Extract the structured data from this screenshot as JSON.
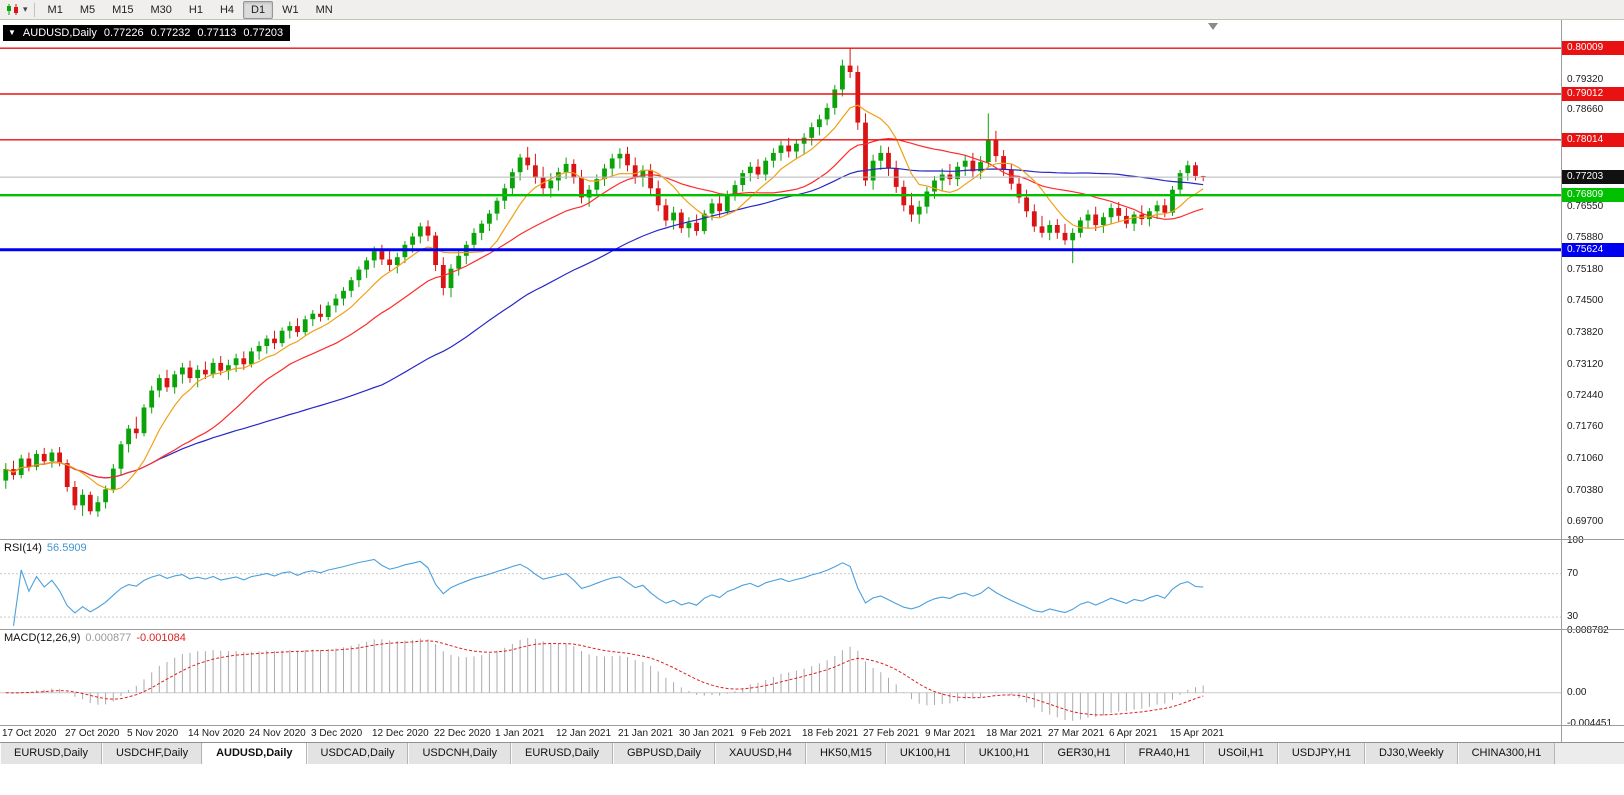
{
  "toolbar": {
    "timeframes": [
      {
        "label": "M1",
        "active": false
      },
      {
        "label": "M5",
        "active": false
      },
      {
        "label": "M15",
        "active": false
      },
      {
        "label": "M30",
        "active": false
      },
      {
        "label": "H1",
        "active": false
      },
      {
        "label": "H4",
        "active": false
      },
      {
        "label": "D1",
        "active": true
      },
      {
        "label": "W1",
        "active": false
      },
      {
        "label": "MN",
        "active": false
      }
    ]
  },
  "infobar": {
    "collapse_icon": "▼",
    "symbol": "AUDUSD,Daily",
    "open": "0.77226",
    "high": "0.77232",
    "low": "0.77113",
    "close": "0.77203"
  },
  "price_axis": {
    "ticks": [
      "0.79320",
      "0.78660",
      "0.76550",
      "0.75880",
      "0.75180",
      "0.74500",
      "0.73820",
      "0.73120",
      "0.72440",
      "0.71760",
      "0.71060",
      "0.70380",
      "0.69700"
    ],
    "badges": [
      {
        "value": "0.80009",
        "color": "#e81212",
        "name": "resistance-1"
      },
      {
        "value": "0.79012",
        "color": "#e81212",
        "name": "resistance-2"
      },
      {
        "value": "0.78014",
        "color": "#e81212",
        "name": "resistance-3"
      },
      {
        "value": "0.77203",
        "color": "#111111",
        "name": "current-price"
      },
      {
        "value": "0.76809",
        "color": "#00c000",
        "name": "support-green"
      },
      {
        "value": "0.75624",
        "color": "#0000f0",
        "name": "support-blue"
      }
    ]
  },
  "rsi": {
    "label": "RSI(14)",
    "value": "56.5909",
    "color": "#4aa0dc",
    "axis": [
      "100",
      "70",
      "30"
    ],
    "levels": [
      70,
      30
    ],
    "domain": [
      20,
      100
    ]
  },
  "macd": {
    "label": "MACD(12,26,9)",
    "main_value": "0.000877",
    "signal_value": "-0.001084",
    "axis_top": "0.008782",
    "axis_zero": "0.00",
    "axis_bottom": "-0.004451",
    "domain": [
      -0.004451,
      0.008782
    ],
    "histogram_color": "#ababab",
    "signal_color": "#e02020"
  },
  "tabs": [
    "EURUSD,Daily",
    "USDCHF,Daily",
    "AUDUSD,Daily",
    "USDCAD,Daily",
    "USDCNH,Daily",
    "EURUSD,Daily",
    "GBPUSD,Daily",
    "XAUUSD,H4",
    "HK50,M15",
    "UK100,H1",
    "UK100,H1",
    "GER30,H1",
    "FRA40,H1",
    "USOil,H1",
    "USDJPY,H1",
    "DJ30,Weekly",
    "CHINA300,H1"
  ],
  "active_tab": 2,
  "chart_data": {
    "type": "candlestick",
    "symbol": "AUDUSD",
    "timeframe": "Daily",
    "price_domain": [
      0.6935,
      0.806
    ],
    "colors": {
      "bull": "#0aa30a",
      "bear": "#d91414"
    },
    "moving_averages": [
      {
        "name": "ma-slow-blue",
        "period": 50,
        "color": "#2828c8"
      },
      {
        "name": "ma-mid-red",
        "period": 20,
        "color": "#ff2b2b"
      },
      {
        "name": "ma-fast-orange",
        "period": 8,
        "color": "#f0a018"
      }
    ],
    "hlines": [
      {
        "name": "hline-resistance-080009",
        "price": 0.80009,
        "color": "#e81212",
        "width": 1.4
      },
      {
        "name": "hline-resistance-079012",
        "price": 0.79012,
        "color": "#e81212",
        "width": 1.4
      },
      {
        "name": "hline-resistance-078014",
        "price": 0.78014,
        "color": "#e81212",
        "width": 1.4
      },
      {
        "name": "hline-current-077203",
        "price": 0.77203,
        "color": "#b8b8b8",
        "width": 1
      },
      {
        "name": "hline-support-076809",
        "price": 0.76809,
        "color": "#00c000",
        "width": 2.4
      },
      {
        "name": "hline-support-075624",
        "price": 0.75624,
        "color": "#0000f0",
        "width": 3
      }
    ],
    "candles": [
      [
        0.706,
        0.7098,
        0.7042,
        0.7085
      ],
      [
        0.7085,
        0.7103,
        0.7062,
        0.7072
      ],
      [
        0.7072,
        0.7116,
        0.7065,
        0.7108
      ],
      [
        0.7108,
        0.7121,
        0.708,
        0.709
      ],
      [
        0.709,
        0.7126,
        0.7082,
        0.7118
      ],
      [
        0.7118,
        0.7131,
        0.7094,
        0.7102
      ],
      [
        0.7102,
        0.7129,
        0.7088,
        0.7121
      ],
      [
        0.7121,
        0.7133,
        0.7091,
        0.7098
      ],
      [
        0.7098,
        0.7106,
        0.7036,
        0.7046
      ],
      [
        0.7046,
        0.7059,
        0.6996,
        0.7006
      ],
      [
        0.7006,
        0.7041,
        0.6983,
        0.7029
      ],
      [
        0.7029,
        0.7036,
        0.6986,
        0.6993
      ],
      [
        0.6993,
        0.7026,
        0.6981,
        0.7013
      ],
      [
        0.7013,
        0.7049,
        0.6999,
        0.7041
      ],
      [
        0.7041,
        0.7096,
        0.7033,
        0.7086
      ],
      [
        0.7086,
        0.7146,
        0.7071,
        0.7139
      ],
      [
        0.7139,
        0.7181,
        0.7121,
        0.7173
      ],
      [
        0.7173,
        0.7199,
        0.7151,
        0.7163
      ],
      [
        0.7163,
        0.7226,
        0.7156,
        0.7219
      ],
      [
        0.7219,
        0.7266,
        0.7206,
        0.7256
      ],
      [
        0.7256,
        0.7291,
        0.7241,
        0.7283
      ],
      [
        0.7283,
        0.7301,
        0.7253,
        0.7263
      ],
      [
        0.7263,
        0.7299,
        0.7249,
        0.7291
      ],
      [
        0.7291,
        0.7316,
        0.7271,
        0.7306
      ],
      [
        0.7306,
        0.7321,
        0.7273,
        0.7283
      ],
      [
        0.7283,
        0.7311,
        0.7263,
        0.7301
      ],
      [
        0.7301,
        0.7319,
        0.7281,
        0.7291
      ],
      [
        0.7291,
        0.7326,
        0.7283,
        0.7316
      ],
      [
        0.7316,
        0.7331,
        0.7289,
        0.7299
      ],
      [
        0.7299,
        0.7323,
        0.7279,
        0.7311
      ],
      [
        0.7311,
        0.7336,
        0.7296,
        0.7326
      ],
      [
        0.7326,
        0.7341,
        0.7301,
        0.7313
      ],
      [
        0.7313,
        0.7349,
        0.7306,
        0.7341
      ],
      [
        0.7341,
        0.7363,
        0.7323,
        0.7353
      ],
      [
        0.7353,
        0.7376,
        0.7336,
        0.7369
      ],
      [
        0.7369,
        0.7386,
        0.7346,
        0.7359
      ],
      [
        0.7359,
        0.7393,
        0.7351,
        0.7386
      ],
      [
        0.7386,
        0.7406,
        0.7369,
        0.7396
      ],
      [
        0.7396,
        0.7413,
        0.7373,
        0.7383
      ],
      [
        0.7383,
        0.7419,
        0.7376,
        0.7411
      ],
      [
        0.7411,
        0.7431,
        0.7396,
        0.7423
      ],
      [
        0.7423,
        0.7443,
        0.7406,
        0.7416
      ],
      [
        0.7416,
        0.7449,
        0.7409,
        0.7441
      ],
      [
        0.7441,
        0.7466,
        0.7426,
        0.7456
      ],
      [
        0.7456,
        0.7481,
        0.7441,
        0.7473
      ],
      [
        0.7473,
        0.7503,
        0.7459,
        0.7496
      ],
      [
        0.7496,
        0.7526,
        0.7481,
        0.7519
      ],
      [
        0.7519,
        0.7546,
        0.7501,
        0.7539
      ],
      [
        0.7539,
        0.7569,
        0.7523,
        0.7559
      ],
      [
        0.7559,
        0.7573,
        0.7529,
        0.7541
      ],
      [
        0.7541,
        0.7563,
        0.7516,
        0.7529
      ],
      [
        0.7529,
        0.7556,
        0.7511,
        0.7546
      ],
      [
        0.7546,
        0.7581,
        0.7533,
        0.7573
      ],
      [
        0.7573,
        0.7599,
        0.7556,
        0.7591
      ],
      [
        0.7591,
        0.7621,
        0.7576,
        0.7613
      ],
      [
        0.7613,
        0.7626,
        0.7581,
        0.7593
      ],
      [
        0.7593,
        0.7601,
        0.7516,
        0.7529
      ],
      [
        0.7529,
        0.7546,
        0.7463,
        0.7479
      ],
      [
        0.7479,
        0.7531,
        0.7459,
        0.7521
      ],
      [
        0.7521,
        0.7559,
        0.7506,
        0.7549
      ],
      [
        0.7549,
        0.7581,
        0.7531,
        0.7573
      ],
      [
        0.7573,
        0.7609,
        0.7561,
        0.7599
      ],
      [
        0.7599,
        0.7626,
        0.7583,
        0.7619
      ],
      [
        0.7619,
        0.7649,
        0.7603,
        0.7641
      ],
      [
        0.7641,
        0.7676,
        0.7626,
        0.7669
      ],
      [
        0.7669,
        0.7706,
        0.7651,
        0.7696
      ],
      [
        0.7696,
        0.7739,
        0.7683,
        0.7731
      ],
      [
        0.7731,
        0.7771,
        0.7713,
        0.7763
      ],
      [
        0.7763,
        0.7786,
        0.7736,
        0.7746
      ],
      [
        0.7746,
        0.7771,
        0.7706,
        0.7719
      ],
      [
        0.7719,
        0.7743,
        0.7683,
        0.7696
      ],
      [
        0.7696,
        0.7729,
        0.7676,
        0.7713
      ],
      [
        0.7713,
        0.7741,
        0.7691,
        0.7731
      ],
      [
        0.7731,
        0.7763,
        0.7716,
        0.7749
      ],
      [
        0.7749,
        0.7759,
        0.7706,
        0.7719
      ],
      [
        0.7719,
        0.7736,
        0.7663,
        0.7676
      ],
      [
        0.7676,
        0.7703,
        0.7656,
        0.7693
      ],
      [
        0.7693,
        0.7726,
        0.7679,
        0.7716
      ],
      [
        0.7716,
        0.7749,
        0.7701,
        0.7739
      ],
      [
        0.7739,
        0.7771,
        0.7723,
        0.7761
      ],
      [
        0.7761,
        0.7783,
        0.7739,
        0.7771
      ],
      [
        0.7771,
        0.7786,
        0.7733,
        0.7746
      ],
      [
        0.7746,
        0.7763,
        0.7706,
        0.7719
      ],
      [
        0.7719,
        0.7746,
        0.7699,
        0.7736
      ],
      [
        0.7736,
        0.7749,
        0.7683,
        0.7696
      ],
      [
        0.7696,
        0.7713,
        0.7646,
        0.7659
      ],
      [
        0.7659,
        0.7673,
        0.7613,
        0.7626
      ],
      [
        0.7626,
        0.7656,
        0.7606,
        0.7643
      ],
      [
        0.7643,
        0.7651,
        0.7599,
        0.7609
      ],
      [
        0.7609,
        0.7633,
        0.7589,
        0.7621
      ],
      [
        0.7621,
        0.7639,
        0.7593,
        0.7603
      ],
      [
        0.7603,
        0.7649,
        0.7596,
        0.7641
      ],
      [
        0.7641,
        0.7673,
        0.7626,
        0.7663
      ],
      [
        0.7663,
        0.7679,
        0.7633,
        0.7646
      ],
      [
        0.7646,
        0.7691,
        0.7639,
        0.7683
      ],
      [
        0.7683,
        0.7713,
        0.7669,
        0.7703
      ],
      [
        0.7703,
        0.7736,
        0.7689,
        0.7729
      ],
      [
        0.7729,
        0.7753,
        0.7711,
        0.7743
      ],
      [
        0.7743,
        0.7759,
        0.7716,
        0.7726
      ],
      [
        0.7726,
        0.7763,
        0.7713,
        0.7756
      ],
      [
        0.7756,
        0.7783,
        0.7741,
        0.7773
      ],
      [
        0.7773,
        0.7799,
        0.7756,
        0.7789
      ],
      [
        0.7789,
        0.7806,
        0.7763,
        0.7776
      ],
      [
        0.7776,
        0.7803,
        0.7759,
        0.7793
      ],
      [
        0.7793,
        0.7816,
        0.7771,
        0.7806
      ],
      [
        0.7806,
        0.7839,
        0.7789,
        0.7829
      ],
      [
        0.7829,
        0.7856,
        0.7811,
        0.7846
      ],
      [
        0.7846,
        0.7881,
        0.7833,
        0.7871
      ],
      [
        0.7871,
        0.7921,
        0.7856,
        0.7911
      ],
      [
        0.7911,
        0.7976,
        0.7896,
        0.7963
      ],
      [
        0.7963,
        0.8001,
        0.7936,
        0.7949
      ],
      [
        0.7949,
        0.7963,
        0.7823,
        0.7839
      ],
      [
        0.7839,
        0.7859,
        0.7701,
        0.7713
      ],
      [
        0.7713,
        0.7769,
        0.7693,
        0.7756
      ],
      [
        0.7756,
        0.7789,
        0.7736,
        0.7773
      ],
      [
        0.7773,
        0.7786,
        0.7723,
        0.7739
      ],
      [
        0.7739,
        0.7756,
        0.7686,
        0.7699
      ],
      [
        0.7699,
        0.7713,
        0.7646,
        0.7659
      ],
      [
        0.7659,
        0.7686,
        0.7623,
        0.7639
      ],
      [
        0.7639,
        0.7669,
        0.7619,
        0.7656
      ],
      [
        0.7656,
        0.7699,
        0.7641,
        0.7689
      ],
      [
        0.7689,
        0.7723,
        0.7673,
        0.7713
      ],
      [
        0.7713,
        0.7739,
        0.7691,
        0.7726
      ],
      [
        0.7726,
        0.7749,
        0.7703,
        0.7716
      ],
      [
        0.7716,
        0.7753,
        0.7701,
        0.7743
      ],
      [
        0.7743,
        0.7769,
        0.7723,
        0.7756
      ],
      [
        0.7756,
        0.7773,
        0.7719,
        0.7733
      ],
      [
        0.7733,
        0.7766,
        0.7716,
        0.7753
      ],
      [
        0.7753,
        0.7859,
        0.7741,
        0.7801
      ],
      [
        0.7801,
        0.7821,
        0.7753,
        0.7766
      ],
      [
        0.7766,
        0.7779,
        0.7723,
        0.7736
      ],
      [
        0.7736,
        0.7749,
        0.7693,
        0.7706
      ],
      [
        0.7706,
        0.7719,
        0.7663,
        0.7676
      ],
      [
        0.7676,
        0.7693,
        0.7633,
        0.7646
      ],
      [
        0.7646,
        0.7661,
        0.7601,
        0.7613
      ],
      [
        0.7613,
        0.7636,
        0.7589,
        0.7599
      ],
      [
        0.7599,
        0.7626,
        0.7583,
        0.7616
      ],
      [
        0.7616,
        0.7629,
        0.7586,
        0.7599
      ],
      [
        0.7599,
        0.7619,
        0.7573,
        0.7583
      ],
      [
        0.7583,
        0.7609,
        0.7533,
        0.7599
      ],
      [
        0.7599,
        0.7633,
        0.7589,
        0.7626
      ],
      [
        0.7626,
        0.7649,
        0.7609,
        0.7639
      ],
      [
        0.7639,
        0.7656,
        0.7603,
        0.7616
      ],
      [
        0.7616,
        0.7643,
        0.7599,
        0.7633
      ],
      [
        0.7633,
        0.7663,
        0.7619,
        0.7653
      ],
      [
        0.7653,
        0.7666,
        0.7623,
        0.7636
      ],
      [
        0.7636,
        0.7653,
        0.7609,
        0.7619
      ],
      [
        0.7619,
        0.7646,
        0.7603,
        0.7639
      ],
      [
        0.7639,
        0.7659,
        0.7616,
        0.7629
      ],
      [
        0.7629,
        0.7653,
        0.7613,
        0.7646
      ],
      [
        0.7646,
        0.7669,
        0.7629,
        0.7659
      ],
      [
        0.7659,
        0.7673,
        0.7633,
        0.7643
      ],
      [
        0.7643,
        0.7701,
        0.7636,
        0.7693
      ],
      [
        0.7693,
        0.7736,
        0.7681,
        0.7729
      ],
      [
        0.7729,
        0.7756,
        0.7713,
        0.7746
      ],
      [
        0.7746,
        0.7753,
        0.7713,
        0.7723
      ],
      [
        0.77226,
        0.77232,
        0.77113,
        0.77203
      ]
    ],
    "date_ticks": [
      {
        "bar": 0,
        "label": "17 Oct 2020"
      },
      {
        "bar": 8,
        "label": "27 Oct 2020"
      },
      {
        "bar": 16,
        "label": "5 Nov 2020"
      },
      {
        "bar": 24,
        "label": "14 Nov 2020"
      },
      {
        "bar": 32,
        "label": "24 Nov 2020"
      },
      {
        "bar": 40,
        "label": "3 Dec 2020"
      },
      {
        "bar": 48,
        "label": "12 Dec 2020"
      },
      {
        "bar": 56,
        "label": "22 Dec 2020"
      },
      {
        "bar": 64,
        "label": "1 Jan 2021"
      },
      {
        "bar": 72,
        "label": "12 Jan 2021"
      },
      {
        "bar": 80,
        "label": "21 Jan 2021"
      },
      {
        "bar": 88,
        "label": "30 Jan 2021"
      },
      {
        "bar": 96,
        "label": "9 Feb 2021"
      },
      {
        "bar": 104,
        "label": "18 Feb 2021"
      },
      {
        "bar": 112,
        "label": "27 Feb 2021"
      },
      {
        "bar": 120,
        "label": "9 Mar 2021"
      },
      {
        "bar": 128,
        "label": "18 Mar 2021"
      },
      {
        "bar": 136,
        "label": "27 Mar 2021"
      },
      {
        "bar": 144,
        "label": "6 Apr 2021"
      },
      {
        "bar": 152,
        "label": "15 Apr 2021"
      }
    ]
  }
}
